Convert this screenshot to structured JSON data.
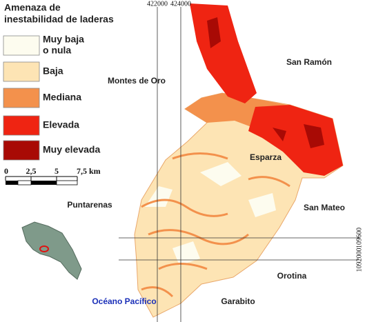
{
  "legend": {
    "title": [
      "Amenaza de",
      "inestabilidad de laderas"
    ],
    "items": [
      {
        "label": [
          "Muy baja",
          "o nula"
        ],
        "color": "#fdfcef"
      },
      {
        "label": [
          "Baja"
        ],
        "color": "#fde4b4"
      },
      {
        "label": [
          "Mediana"
        ],
        "color": "#f3914c"
      },
      {
        "label": [
          "Elevada"
        ],
        "color": "#ef2412"
      },
      {
        "label": [
          "Muy elevada"
        ],
        "color": "#a80a05"
      }
    ]
  },
  "scale": {
    "ticks": [
      "0",
      "2,5",
      "5",
      "7,5 km"
    ]
  },
  "coordinates": {
    "x": [
      "422000",
      "424000"
    ],
    "y": [
      "1092000",
      "109600"
    ]
  },
  "places": [
    "San Ramón",
    "Montes de Oro",
    "Esparza",
    "Puntarenas",
    "San Mateo",
    "Orotina",
    "Océano Pacífico",
    "Garabito"
  ]
}
